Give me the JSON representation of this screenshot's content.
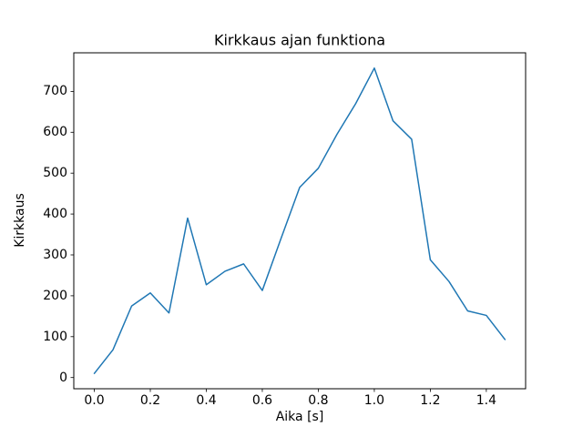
{
  "chart_data": {
    "type": "line",
    "title": "Kirkkaus ajan funktiona",
    "xlabel": "Aika [s]",
    "ylabel": "Kirkkaus",
    "x": [
      0,
      0.0667,
      0.1333,
      0.2,
      0.2667,
      0.3333,
      0.4,
      0.4667,
      0.5333,
      0.6,
      0.6667,
      0.7333,
      0.8,
      0.8667,
      0.9333,
      1.0,
      1.0667,
      1.1333,
      1.2,
      1.2667,
      1.3333,
      1.4,
      1.4667
    ],
    "y": [
      10,
      68,
      175,
      207,
      158,
      390,
      227,
      260,
      278,
      213,
      340,
      465,
      512,
      595,
      670,
      757,
      628,
      583,
      288,
      235,
      163,
      152,
      93
    ],
    "xlim": [
      -0.0733,
      1.5403
    ],
    "ylim": [
      -27.4,
      794.4
    ],
    "xticks": [
      0.0,
      0.2,
      0.4,
      0.6,
      0.8,
      1.0,
      1.2,
      1.4
    ],
    "xtick_labels": [
      "0.0",
      "0.2",
      "0.4",
      "0.6",
      "0.8",
      "1.0",
      "1.2",
      "1.4"
    ],
    "yticks": [
      0,
      100,
      200,
      300,
      400,
      500,
      600,
      700
    ],
    "ytick_labels": [
      "0",
      "100",
      "200",
      "300",
      "400",
      "500",
      "600",
      "700"
    ],
    "line_color": "#1f77b4",
    "frame_color": "#000000",
    "background": "#ffffff",
    "grid": false,
    "legend": null
  }
}
